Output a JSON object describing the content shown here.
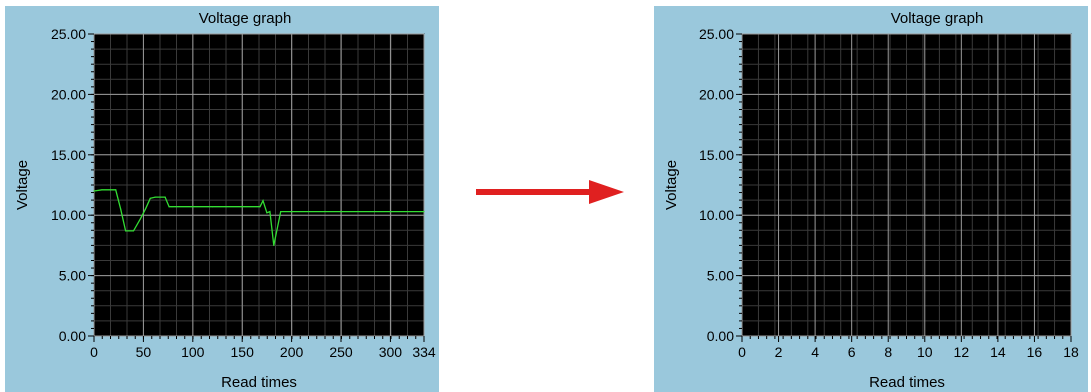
{
  "charts": [
    {
      "type": "line",
      "title": "Voltage graph",
      "xlabel": "Read times",
      "ylabel": "Voltage",
      "xlim": [
        0,
        334
      ],
      "ylim": [
        0,
        25
      ],
      "xticks": [
        "0",
        "50",
        "100",
        "150",
        "200",
        "250",
        "300",
        "334"
      ],
      "xtick_values": [
        0,
        50,
        100,
        150,
        200,
        250,
        300,
        334
      ],
      "yticks": [
        "0.00",
        "5.00",
        "10.00",
        "15.00",
        "20.00",
        "25.00"
      ],
      "ytick_values": [
        0,
        5,
        10,
        15,
        20,
        25
      ],
      "background": "#000000",
      "line_color": "#33dd33",
      "grid": true,
      "series": [
        {
          "x": [
            0,
            8,
            22,
            27,
            32,
            40,
            47,
            52,
            57,
            62,
            72,
            76,
            79,
            120,
            168,
            171,
            175,
            178,
            182,
            189,
            200,
            334
          ],
          "y": [
            12.0,
            12.1,
            12.1,
            10.5,
            8.7,
            8.7,
            9.7,
            10.5,
            11.4,
            11.5,
            11.5,
            10.7,
            10.7,
            10.7,
            10.7,
            11.2,
            10.2,
            10.3,
            7.5,
            10.3,
            10.3,
            10.3
          ]
        }
      ]
    },
    {
      "type": "line",
      "title": "Voltage graph",
      "xlabel": "Read times",
      "ylabel": "Voltage",
      "xlim": [
        0,
        18
      ],
      "ylim": [
        0,
        25
      ],
      "xticks": [
        "0",
        "2",
        "4",
        "6",
        "8",
        "10",
        "12",
        "14",
        "16",
        "18"
      ],
      "xtick_values": [
        0,
        2,
        4,
        6,
        8,
        10,
        12,
        14,
        16,
        18
      ],
      "yticks": [
        "0.00",
        "5.00",
        "10.00",
        "15.00",
        "20.00",
        "25.00"
      ],
      "ytick_values": [
        0,
        5,
        10,
        15,
        20,
        25
      ],
      "background": "#000000",
      "line_color": "#33dd33",
      "grid": true,
      "series": []
    }
  ],
  "arrow_color": "#e02020"
}
